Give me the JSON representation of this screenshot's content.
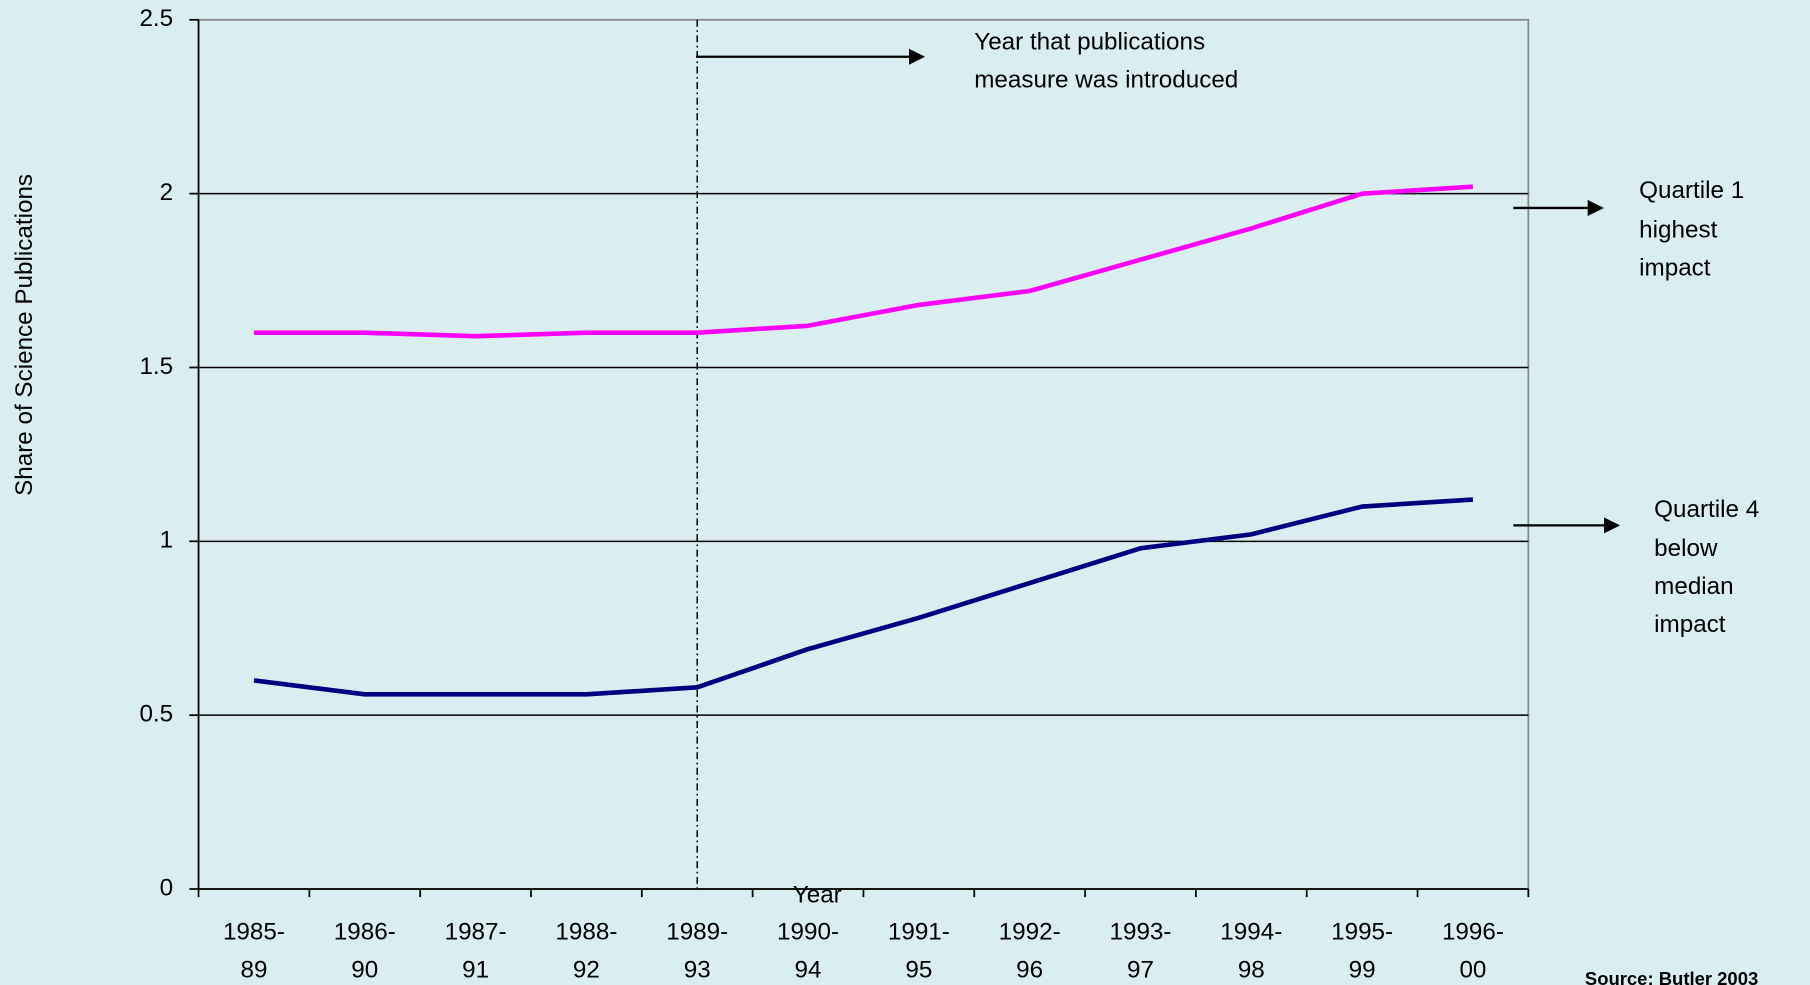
{
  "chart_data": {
    "type": "line",
    "x_label": "Year",
    "y_label": "Share of Science Publications",
    "categories": [
      [
        "1985-",
        "89"
      ],
      [
        "1986-",
        "90"
      ],
      [
        "1987-",
        "91"
      ],
      [
        "1988-",
        "92"
      ],
      [
        "1989-",
        "93"
      ],
      [
        "1990-",
        "94"
      ],
      [
        "1991-",
        "95"
      ],
      [
        "1992-",
        "96"
      ],
      [
        "1993-",
        "97"
      ],
      [
        "1994-",
        "98"
      ],
      [
        "1995-",
        "99"
      ],
      [
        "1996-",
        "00"
      ]
    ],
    "series": [
      {
        "color": "#ff00ff",
        "values": [
          1.6,
          1.6,
          1.59,
          1.6,
          1.6,
          1.62,
          1.68,
          1.72,
          1.81,
          1.9,
          2.0,
          2.02
        ]
      },
      {
        "color": "#000080",
        "values": [
          0.6,
          0.56,
          0.56,
          0.56,
          0.58,
          0.69,
          0.78,
          0.88,
          0.98,
          1.02,
          1.1,
          1.12
        ]
      }
    ],
    "ylim": [
      0,
      2.5
    ],
    "yticks": [
      0,
      0.5,
      1,
      1.5,
      2,
      2.5
    ],
    "grid": true,
    "annotations": {
      "introduced": [
        "Year that publications",
        "measure was introduced"
      ],
      "quartile1": [
        "Quartile 1",
        "highest",
        "impact"
      ],
      "quartile4": [
        "Quartile 4",
        "below",
        "median",
        "impact"
      ],
      "source": "Source: Butler 2003"
    }
  }
}
